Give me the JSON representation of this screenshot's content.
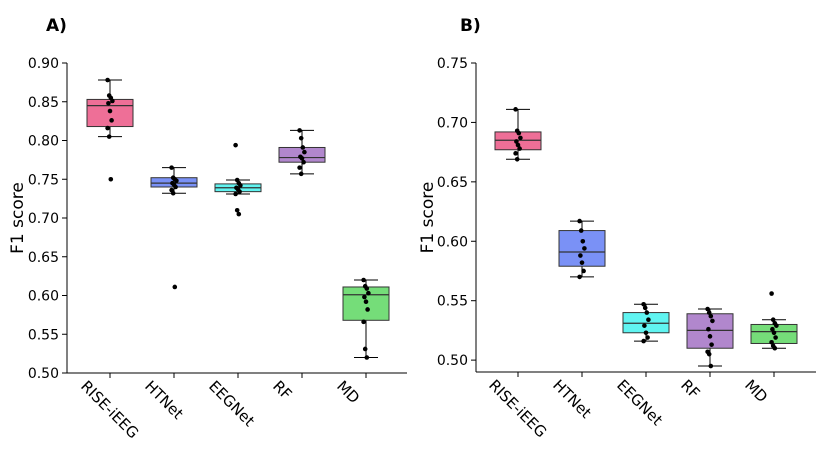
{
  "chart_data": [
    {
      "panel": "A)",
      "type": "box",
      "ylabel": "F1 score",
      "ylim": [
        0.5,
        0.9
      ],
      "yticks": [
        "0.50",
        "0.55",
        "0.60",
        "0.65",
        "0.70",
        "0.75",
        "0.80",
        "0.85",
        "0.90"
      ],
      "categories": [
        "RISE-iEEG",
        "HTNet",
        "EEGNet",
        "RF",
        "MD"
      ],
      "colors": [
        "#ec5f8c",
        "#6c85f5",
        "#4ff3ef",
        "#a97ac8",
        "#66d96a"
      ],
      "boxes": [
        {
          "q1": 0.818,
          "median": 0.845,
          "q3": 0.853,
          "whisker_low": 0.805,
          "whisker_high": 0.878,
          "points": [
            0.878,
            0.858,
            0.855,
            0.851,
            0.848,
            0.838,
            0.826,
            0.816,
            0.805,
            0.75
          ]
        },
        {
          "q1": 0.74,
          "median": 0.745,
          "q3": 0.752,
          "whisker_low": 0.732,
          "whisker_high": 0.765,
          "points": [
            0.765,
            0.752,
            0.75,
            0.748,
            0.745,
            0.743,
            0.74,
            0.736,
            0.732,
            0.611
          ]
        },
        {
          "q1": 0.734,
          "median": 0.739,
          "q3": 0.744,
          "whisker_low": 0.731,
          "whisker_high": 0.749,
          "points": [
            0.794,
            0.749,
            0.745,
            0.742,
            0.739,
            0.737,
            0.734,
            0.731,
            0.71,
            0.705
          ]
        },
        {
          "q1": 0.772,
          "median": 0.778,
          "q3": 0.791,
          "whisker_low": 0.757,
          "whisker_high": 0.813,
          "points": [
            0.813,
            0.803,
            0.791,
            0.785,
            0.779,
            0.777,
            0.772,
            0.765,
            0.757
          ]
        },
        {
          "q1": 0.568,
          "median": 0.601,
          "q3": 0.611,
          "whisker_low": 0.52,
          "whisker_high": 0.62,
          "points": [
            0.62,
            0.612,
            0.609,
            0.603,
            0.598,
            0.592,
            0.582,
            0.566,
            0.531,
            0.52
          ]
        }
      ]
    },
    {
      "panel": "B)",
      "type": "box",
      "ylabel": "F1 score",
      "ylim": [
        0.49,
        0.75
      ],
      "yticks": [
        "0.50",
        "0.55",
        "0.60",
        "0.65",
        "0.70",
        "0.75"
      ],
      "categories": [
        "RISE-iEEG",
        "HTNet",
        "EEGNet",
        "RF",
        "MD"
      ],
      "colors": [
        "#ec5f8c",
        "#6c85f5",
        "#4ff3ef",
        "#a97ac8",
        "#66d96a"
      ],
      "boxes": [
        {
          "q1": 0.677,
          "median": 0.685,
          "q3": 0.692,
          "whisker_low": 0.669,
          "whisker_high": 0.711,
          "points": [
            0.711,
            0.693,
            0.691,
            0.687,
            0.684,
            0.681,
            0.678,
            0.674,
            0.669
          ]
        },
        {
          "q1": 0.579,
          "median": 0.591,
          "q3": 0.609,
          "whisker_low": 0.57,
          "whisker_high": 0.617,
          "points": [
            0.617,
            0.609,
            0.6,
            0.594,
            0.588,
            0.582,
            0.575,
            0.57
          ]
        },
        {
          "q1": 0.523,
          "median": 0.531,
          "q3": 0.54,
          "whisker_low": 0.516,
          "whisker_high": 0.547,
          "points": [
            0.547,
            0.544,
            0.54,
            0.534,
            0.529,
            0.523,
            0.519,
            0.516
          ]
        },
        {
          "q1": 0.51,
          "median": 0.525,
          "q3": 0.539,
          "whisker_low": 0.495,
          "whisker_high": 0.543,
          "points": [
            0.543,
            0.54,
            0.537,
            0.533,
            0.526,
            0.52,
            0.513,
            0.507,
            0.505,
            0.495
          ]
        },
        {
          "q1": 0.514,
          "median": 0.524,
          "q3": 0.53,
          "whisker_low": 0.51,
          "whisker_high": 0.534,
          "points": [
            0.556,
            0.534,
            0.531,
            0.529,
            0.526,
            0.523,
            0.519,
            0.515,
            0.512,
            0.51
          ]
        }
      ]
    }
  ]
}
